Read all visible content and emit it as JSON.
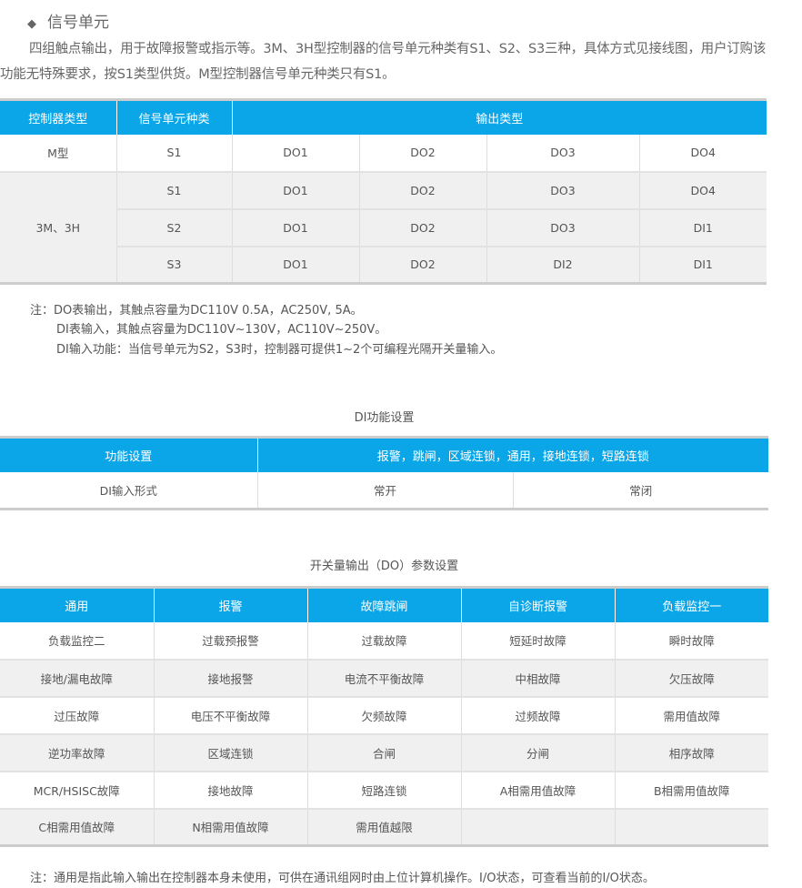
{
  "section": {
    "icon": "diamond-icon",
    "title": "信号单元",
    "paragraph": "四组触点输出，用于故障报警或指示等。3M、3H型控制器的信号单元种类有S1、S2、S3三种，具体方式见接线图，用户订购该功能无特殊要求，按S1类型供货。M型控制器信号单元种类只有S1。"
  },
  "accent_color": "#0aa6e8",
  "table1": {
    "headers": [
      "控制器类型",
      "信号单元种类",
      "输出类型"
    ],
    "rows": [
      {
        "type": "M型",
        "unit": "S1",
        "outputs": [
          "DO1",
          "DO2",
          "DO3",
          "DO4"
        ]
      },
      {
        "type": "3M、3H",
        "unit": "S1",
        "outputs": [
          "DO1",
          "DO2",
          "DO3",
          "DO4"
        ]
      },
      {
        "unit": "S2",
        "outputs": [
          "DO1",
          "DO2",
          "DO3",
          "DI1"
        ]
      },
      {
        "unit": "S3",
        "outputs": [
          "DO1",
          "DO2",
          "DI2",
          "DI1"
        ]
      }
    ]
  },
  "notes1": [
    "注：DO表输出，其触点容量为DC110V 0.5A，AC250V, 5A。",
    "DI表输入，其触点容量为DC110V~130V，AC110V~250V。",
    "DI输入功能：当信号单元为S2，S3时，控制器可提供1~2个可编程光隔开关量输入。"
  ],
  "table2": {
    "caption": "DI功能设置",
    "headers": [
      "功能设置",
      "报警，跳闸，区域连锁，通用，接地连锁，短路连锁"
    ],
    "row": [
      "DI输入形式",
      "常开",
      "常闭"
    ]
  },
  "table3": {
    "caption": "开关量输出（DO）参数设置",
    "headers": [
      "通用",
      "报警",
      "故障跳闸",
      "自诊断报警",
      "负载监控一"
    ],
    "rows": [
      [
        "负载监控二",
        "过载预报警",
        "过载故障",
        "短延时故障",
        "瞬时故障"
      ],
      [
        "接地/漏电故障",
        "接地报警",
        "电流不平衡故障",
        "中相故障",
        "欠压故障"
      ],
      [
        "过压故障",
        "电压不平衡故障",
        "欠频故障",
        "过频故障",
        "需用值故障"
      ],
      [
        "逆功率故障",
        "区域连锁",
        "合闸",
        "分闸",
        "相序故障"
      ],
      [
        "MCR/HSISC故障",
        "接地故障",
        "短路连锁",
        "A相需用值故障",
        "B相需用值故障"
      ],
      [
        "C相需用值故障",
        "N相需用值故障",
        "需用值越限",
        "",
        ""
      ]
    ]
  },
  "note3": "注：通用是指此输入输出在控制器本身未使用，可供在通讯组网时由上位计算机操作。I/O状态，可查看当前的I/O状态。"
}
